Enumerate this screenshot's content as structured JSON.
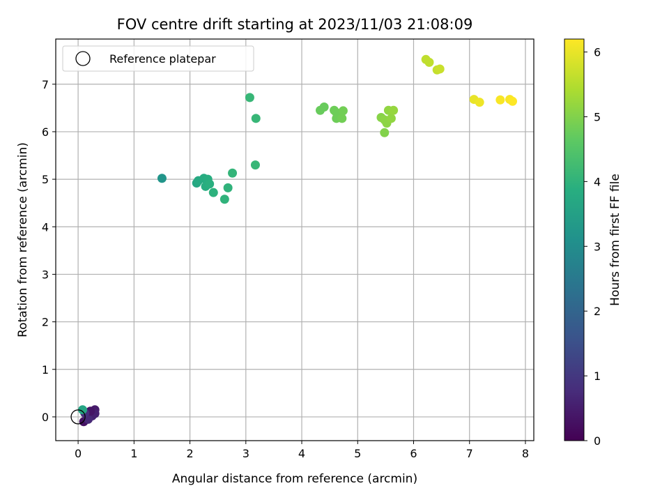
{
  "chart_data": {
    "type": "scatter",
    "title": "FOV centre drift starting at 2023/11/03 21:08:09",
    "xlabel": "Angular distance from reference (arcmin)",
    "ylabel": "Rotation from reference (arcmin)",
    "xlim": [
      -0.4,
      8.15
    ],
    "ylim": [
      -0.5,
      7.95
    ],
    "xticks": [
      0,
      1,
      2,
      3,
      4,
      5,
      6,
      7,
      8
    ],
    "yticks": [
      0,
      1,
      2,
      3,
      4,
      5,
      6,
      7
    ],
    "grid": true,
    "legend": {
      "placement": "top-left",
      "entries": [
        "Reference platepar"
      ]
    },
    "reference_point": {
      "x": 0,
      "y": 0
    },
    "colorbar": {
      "label": "Hours from first FF file",
      "colormap": "viridis",
      "range": [
        0,
        6.2
      ],
      "ticks": [
        0,
        1,
        2,
        3,
        4,
        5,
        6
      ]
    },
    "points": [
      {
        "x": 0.1,
        "y": -0.1,
        "hours": 0.3
      },
      {
        "x": 0.15,
        "y": 0.05,
        "hours": 0.4
      },
      {
        "x": 0.2,
        "y": 0.1,
        "hours": 0.5
      },
      {
        "x": 0.25,
        "y": 0.02,
        "hours": 0.6
      },
      {
        "x": 0.3,
        "y": 0.15,
        "hours": 0.45
      },
      {
        "x": 0.3,
        "y": 0.07,
        "hours": 0.55
      },
      {
        "x": 0.18,
        "y": -0.05,
        "hours": 0.7
      },
      {
        "x": 0.22,
        "y": 0.12,
        "hours": 0.35
      },
      {
        "x": 0.12,
        "y": 0.08,
        "hours": 0.8
      },
      {
        "x": 0.08,
        "y": 0.15,
        "hours": 3.6
      },
      {
        "x": 1.5,
        "y": 5.02,
        "hours": 3.2
      },
      {
        "x": 2.12,
        "y": 4.92,
        "hours": 3.7
      },
      {
        "x": 2.15,
        "y": 4.97,
        "hours": 3.75
      },
      {
        "x": 2.25,
        "y": 5.02,
        "hours": 3.8
      },
      {
        "x": 2.28,
        "y": 4.85,
        "hours": 3.85
      },
      {
        "x": 2.32,
        "y": 5.0,
        "hours": 3.85
      },
      {
        "x": 2.35,
        "y": 4.9,
        "hours": 3.9
      },
      {
        "x": 2.42,
        "y": 4.72,
        "hours": 3.95
      },
      {
        "x": 2.62,
        "y": 4.58,
        "hours": 4.0
      },
      {
        "x": 2.68,
        "y": 4.82,
        "hours": 4.0
      },
      {
        "x": 2.76,
        "y": 5.13,
        "hours": 4.05
      },
      {
        "x": 3.07,
        "y": 6.72,
        "hours": 4.1
      },
      {
        "x": 3.18,
        "y": 6.28,
        "hours": 4.1
      },
      {
        "x": 3.17,
        "y": 5.3,
        "hours": 4.1
      },
      {
        "x": 4.33,
        "y": 6.45,
        "hours": 4.75
      },
      {
        "x": 4.4,
        "y": 6.52,
        "hours": 4.75
      },
      {
        "x": 4.58,
        "y": 6.45,
        "hours": 4.8
      },
      {
        "x": 4.62,
        "y": 6.4,
        "hours": 4.8
      },
      {
        "x": 4.62,
        "y": 6.28,
        "hours": 4.8
      },
      {
        "x": 4.72,
        "y": 6.28,
        "hours": 4.85
      },
      {
        "x": 4.74,
        "y": 6.44,
        "hours": 4.85
      },
      {
        "x": 5.42,
        "y": 6.3,
        "hours": 5.05
      },
      {
        "x": 5.48,
        "y": 6.25,
        "hours": 5.1
      },
      {
        "x": 5.52,
        "y": 6.18,
        "hours": 5.1
      },
      {
        "x": 5.55,
        "y": 6.45,
        "hours": 5.15
      },
      {
        "x": 5.6,
        "y": 6.28,
        "hours": 5.15
      },
      {
        "x": 5.64,
        "y": 6.45,
        "hours": 5.2
      },
      {
        "x": 5.48,
        "y": 5.98,
        "hours": 5.0
      },
      {
        "x": 6.22,
        "y": 7.52,
        "hours": 5.6
      },
      {
        "x": 6.28,
        "y": 7.46,
        "hours": 5.6
      },
      {
        "x": 6.42,
        "y": 7.3,
        "hours": 5.65
      },
      {
        "x": 6.47,
        "y": 7.32,
        "hours": 5.7
      },
      {
        "x": 7.08,
        "y": 6.68,
        "hours": 6.0
      },
      {
        "x": 7.18,
        "y": 6.62,
        "hours": 6.05
      },
      {
        "x": 7.55,
        "y": 6.67,
        "hours": 6.15
      },
      {
        "x": 7.72,
        "y": 6.68,
        "hours": 6.15
      },
      {
        "x": 7.77,
        "y": 6.64,
        "hours": 6.2
      }
    ]
  }
}
